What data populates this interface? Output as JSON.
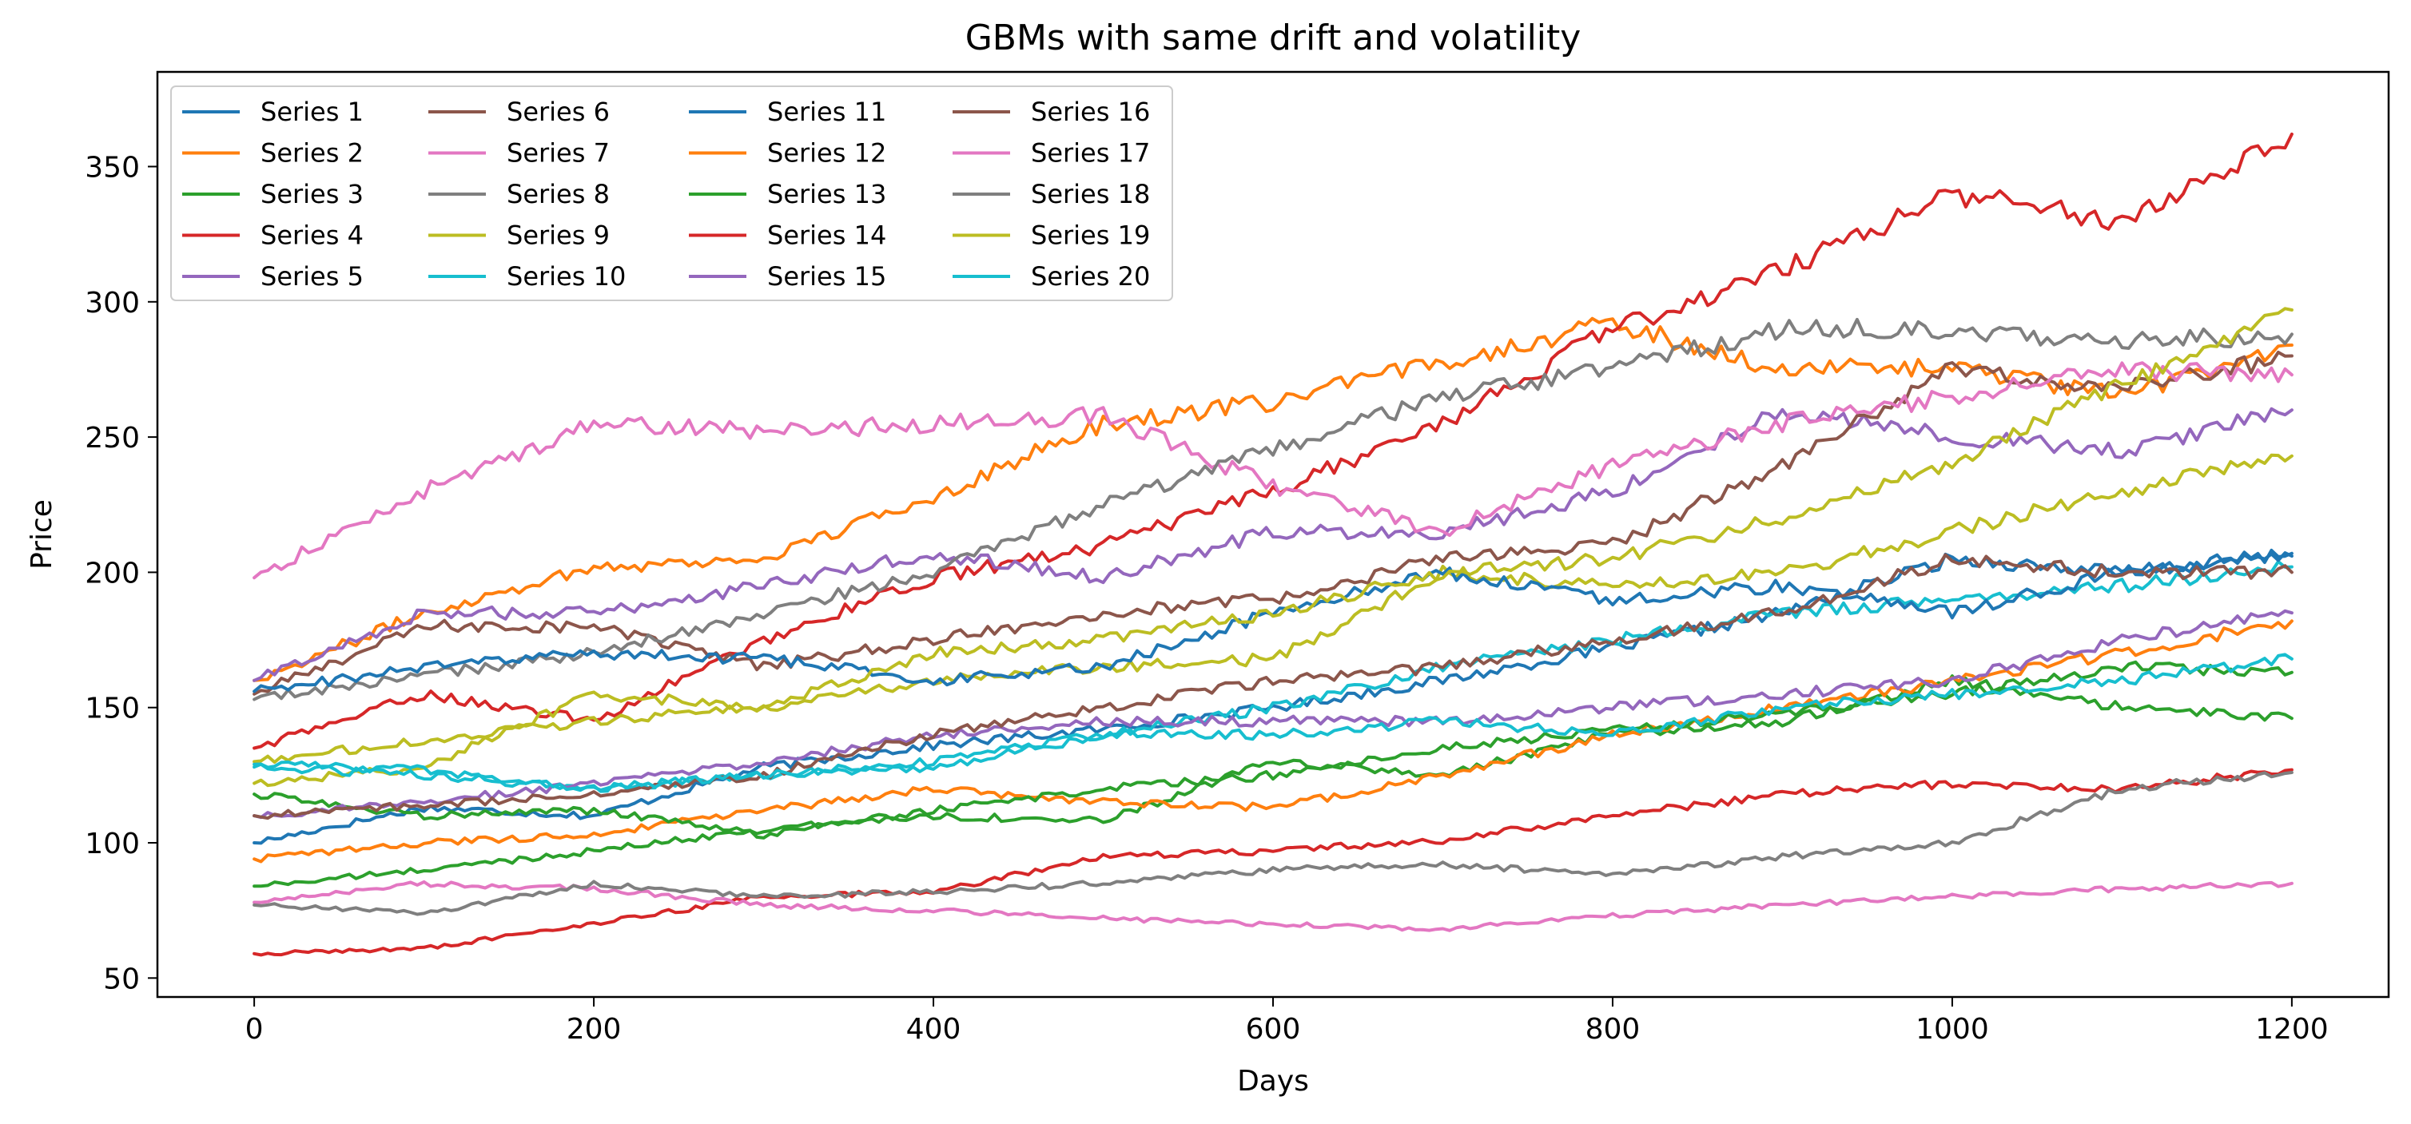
{
  "chart_data": {
    "type": "line",
    "title": "GBMs with same drift and volatility",
    "xlabel": "Days",
    "ylabel": "Price",
    "xlim": [
      -57,
      1257
    ],
    "ylim": [
      43,
      385
    ],
    "xticks": [
      0,
      200,
      400,
      600,
      800,
      1000,
      1200
    ],
    "yticks": [
      50,
      100,
      150,
      200,
      250,
      300,
      350
    ],
    "grid": false,
    "legend": {
      "placement": "top-left",
      "columns": 4
    },
    "series": [
      {
        "name": "Series 1",
        "color": "#1f77b4",
        "x": [
          0,
          100,
          200,
          300,
          400,
          500,
          600,
          700,
          800,
          900,
          1000,
          1100,
          1200
        ],
        "values": [
          100,
          113,
          110,
          128,
          136,
          142,
          150,
          160,
          172,
          185,
          205,
          200,
          207
        ]
      },
      {
        "name": "Series 2",
        "color": "#ff7f0e",
        "x": [
          0,
          100,
          200,
          300,
          400,
          500,
          600,
          700,
          800,
          900,
          1000,
          1100,
          1200
        ],
        "values": [
          160,
          185,
          202,
          205,
          228,
          255,
          263,
          278,
          292,
          275,
          276,
          265,
          284
        ]
      },
      {
        "name": "Series 3",
        "color": "#2ca02c",
        "x": [
          0,
          100,
          200,
          300,
          400,
          500,
          600,
          700,
          800,
          900,
          1000,
          1100,
          1200
        ],
        "values": [
          84,
          90,
          97,
          105,
          110,
          108,
          130,
          125,
          140,
          145,
          160,
          150,
          146
        ]
      },
      {
        "name": "Series 4",
        "color": "#d62728",
        "x": [
          0,
          100,
          200,
          300,
          400,
          500,
          600,
          700,
          800,
          900,
          1000,
          1100,
          1200
        ],
        "values": [
          135,
          155,
          145,
          175,
          198,
          210,
          230,
          255,
          290,
          312,
          340,
          330,
          362
        ]
      },
      {
        "name": "Series 5",
        "color": "#9467bd",
        "x": [
          0,
          100,
          200,
          300,
          400,
          500,
          600,
          700,
          800,
          900,
          1000,
          1100,
          1200
        ],
        "values": [
          160,
          185,
          185,
          195,
          207,
          198,
          215,
          215,
          230,
          260,
          250,
          245,
          260
        ]
      },
      {
        "name": "Series 6",
        "color": "#8c564b",
        "x": [
          0,
          100,
          200,
          300,
          400,
          500,
          600,
          700,
          800,
          900,
          1000,
          1100,
          1200
        ],
        "values": [
          155,
          180,
          180,
          165,
          175,
          185,
          190,
          205,
          210,
          240,
          275,
          268,
          280
        ]
      },
      {
        "name": "Series 7",
        "color": "#e377c2",
        "x": [
          0,
          100,
          200,
          300,
          400,
          500,
          600,
          700,
          800,
          900,
          1000,
          1100,
          1200
        ],
        "values": [
          198,
          230,
          255,
          252,
          255,
          258,
          232,
          215,
          240,
          255,
          265,
          275,
          273
        ]
      },
      {
        "name": "Series 8",
        "color": "#7f7f7f",
        "x": [
          0,
          100,
          200,
          300,
          400,
          500,
          600,
          700,
          800,
          900,
          1000,
          1100,
          1200
        ],
        "values": [
          153,
          162,
          170,
          185,
          200,
          225,
          245,
          265,
          275,
          290,
          290,
          285,
          288
        ]
      },
      {
        "name": "Series 9",
        "color": "#bcbd22",
        "x": [
          0,
          100,
          200,
          300,
          400,
          500,
          600,
          700,
          800,
          900,
          1000,
          1100,
          1200
        ],
        "values": [
          122,
          128,
          155,
          150,
          160,
          165,
          168,
          200,
          195,
          200,
          215,
          230,
          243
        ]
      },
      {
        "name": "Series 10",
        "color": "#17becf",
        "x": [
          0,
          100,
          200,
          300,
          400,
          500,
          600,
          700,
          800,
          900,
          1000,
          1100,
          1200
        ],
        "values": [
          128,
          125,
          120,
          125,
          130,
          140,
          150,
          165,
          175,
          185,
          190,
          195,
          202
        ]
      },
      {
        "name": "Series 11",
        "color": "#1f77b4",
        "x": [
          0,
          100,
          200,
          300,
          400,
          500,
          600,
          700,
          800,
          900,
          1000,
          1100,
          1200
        ],
        "values": [
          156,
          165,
          170,
          168,
          160,
          165,
          185,
          200,
          190,
          195,
          185,
          200,
          206
        ]
      },
      {
        "name": "Series 12",
        "color": "#ff7f0e",
        "x": [
          0,
          100,
          200,
          300,
          400,
          500,
          600,
          700,
          800,
          900,
          1000,
          1100,
          1200
        ],
        "values": [
          94,
          100,
          103,
          112,
          120,
          115,
          113,
          125,
          140,
          150,
          160,
          170,
          182
        ]
      },
      {
        "name": "Series 13",
        "color": "#2ca02c",
        "x": [
          0,
          100,
          200,
          300,
          400,
          500,
          600,
          700,
          800,
          900,
          1000,
          1100,
          1200
        ],
        "values": [
          118,
          110,
          112,
          103,
          112,
          120,
          125,
          135,
          142,
          148,
          155,
          165,
          163
        ]
      },
      {
        "name": "Series 14",
        "color": "#d62728",
        "x": [
          0,
          100,
          200,
          300,
          400,
          500,
          600,
          700,
          800,
          900,
          1000,
          1100,
          1200
        ],
        "values": [
          59,
          61,
          70,
          80,
          82,
          95,
          97,
          101,
          110,
          118,
          122,
          120,
          127
        ]
      },
      {
        "name": "Series 15",
        "color": "#9467bd",
        "x": [
          0,
          100,
          200,
          300,
          400,
          500,
          600,
          700,
          800,
          900,
          1000,
          1100,
          1200
        ],
        "values": [
          110,
          115,
          122,
          130,
          140,
          145,
          145,
          145,
          150,
          155,
          160,
          175,
          185
        ]
      },
      {
        "name": "Series 16",
        "color": "#8c564b",
        "x": [
          0,
          100,
          200,
          300,
          400,
          500,
          600,
          700,
          800,
          900,
          1000,
          1100,
          1200
        ],
        "values": [
          110,
          114,
          118,
          125,
          140,
          150,
          160,
          165,
          175,
          185,
          205,
          200,
          200
        ]
      },
      {
        "name": "Series 17",
        "color": "#e377c2",
        "x": [
          0,
          100,
          200,
          300,
          400,
          500,
          600,
          700,
          800,
          900,
          1000,
          1100,
          1200
        ],
        "values": [
          78,
          85,
          83,
          77,
          75,
          72,
          70,
          68,
          73,
          77,
          80,
          83,
          85
        ]
      },
      {
        "name": "Series 18",
        "color": "#7f7f7f",
        "x": [
          0,
          100,
          200,
          300,
          400,
          500,
          600,
          700,
          800,
          900,
          1000,
          1100,
          1200
        ],
        "values": [
          77,
          74,
          85,
          80,
          82,
          85,
          90,
          92,
          88,
          95,
          100,
          120,
          126
        ]
      },
      {
        "name": "Series 19",
        "color": "#bcbd22",
        "x": [
          0,
          100,
          200,
          300,
          400,
          500,
          600,
          700,
          800,
          900,
          1000,
          1100,
          1200
        ],
        "values": [
          130,
          138,
          145,
          150,
          170,
          175,
          185,
          200,
          205,
          220,
          240,
          270,
          297
        ]
      },
      {
        "name": "Series 20",
        "color": "#17becf",
        "x": [
          0,
          100,
          200,
          300,
          400,
          500,
          600,
          700,
          800,
          900,
          1000,
          1100,
          1200
        ],
        "values": [
          129,
          127,
          120,
          125,
          128,
          140,
          140,
          145,
          140,
          150,
          155,
          160,
          168
        ]
      }
    ]
  }
}
